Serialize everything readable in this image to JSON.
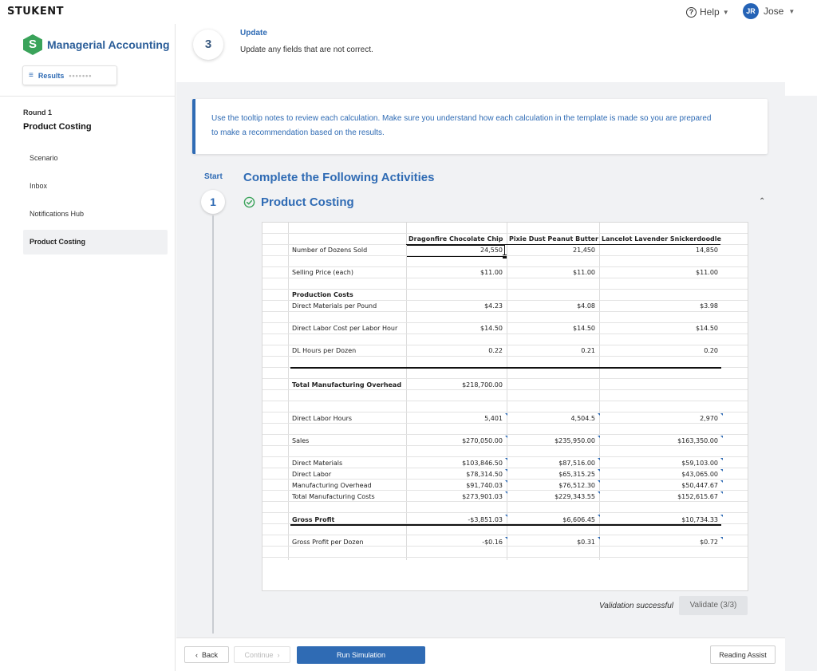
{
  "app": {
    "logo": "STUKENT",
    "help_label": "Help",
    "user": {
      "initials": "JR",
      "name": "Jose"
    },
    "accent_color": "#2f6bb4"
  },
  "sidebar": {
    "brand_letter": "S",
    "brand_title": "Managerial Accounting",
    "results_label": "Results",
    "round_label": "Round 1",
    "round_title": "Product Costing",
    "items": [
      {
        "label": "Scenario",
        "active": false
      },
      {
        "label": "Inbox",
        "active": false
      },
      {
        "label": "Notifications Hub",
        "active": false
      },
      {
        "label": "Product Costing",
        "active": true
      }
    ]
  },
  "update": {
    "step_number": "3",
    "title": "Update",
    "description": "Update any fields that are not correct."
  },
  "tip": {
    "line1": "Use the tooltip notes to review each calculation. Make sure you understand how each calculation in the template is made so you are prepared",
    "line2": "to make a recommendation based on the results."
  },
  "activities": {
    "start_label": "Start",
    "title": "Complete the Following Activities",
    "step_number": "1",
    "section_title": "Product Costing"
  },
  "sheet": {
    "columns": [
      "Dragonfire Chocolate Chip",
      "Pixie Dust Peanut Butter",
      "Lancelot Lavender Snickerdoodle"
    ],
    "rows": [
      {
        "label": "Number of Dozens Sold",
        "values": [
          "24,550",
          "21,450",
          "14,850"
        ]
      },
      {
        "label": "Selling Price (each)",
        "values": [
          "$11.00",
          "$11.00",
          "$11.00"
        ]
      },
      {
        "label": "Production Costs",
        "values": [
          "",
          "",
          ""
        ]
      },
      {
        "label": "Direct Materials per Pound",
        "values": [
          "$4.23",
          "$4.08",
          "$3.98"
        ]
      },
      {
        "label": "Direct Labor Cost per Labor Hour",
        "values": [
          "$14.50",
          "$14.50",
          "$14.50"
        ]
      },
      {
        "label": "DL Hours per Dozen",
        "values": [
          "0.22",
          "0.21",
          "0.20"
        ]
      },
      {
        "label": "Total Manufacturing Overhead",
        "values": [
          "$218,700.00",
          "",
          ""
        ]
      },
      {
        "label": "Direct Labor Hours",
        "values": [
          "5,401",
          "4,504.5",
          "2,970"
        ]
      },
      {
        "label": "Sales",
        "values": [
          "$270,050.00",
          "$235,950.00",
          "$163,350.00"
        ]
      },
      {
        "label": "Direct Materials",
        "values": [
          "$103,846.50",
          "$87,516.00",
          "$59,103.00"
        ]
      },
      {
        "label": "Direct Labor",
        "values": [
          "$78,314.50",
          "$65,315.25",
          "$43,065.00"
        ]
      },
      {
        "label": "Manufacturing Overhead",
        "values": [
          "$91,740.03",
          "$76,512.30",
          "$50,447.67"
        ]
      },
      {
        "label": "Total Manufacturing Costs",
        "values": [
          "$273,901.03",
          "$229,343.55",
          "$152,615.67"
        ]
      },
      {
        "label": "Gross Profit",
        "values": [
          "-$3,851.03",
          "$6,606.45",
          "$10,734.33"
        ]
      },
      {
        "label": "Gross Profit per Dozen",
        "values": [
          "-$0.16",
          "$0.31",
          "$0.72"
        ]
      }
    ]
  },
  "validation": {
    "status": "Validation successful",
    "button_label": "Validate (3/3)"
  },
  "footer": {
    "back_label": "Back",
    "continue_label": "Continue",
    "run_label": "Run Simulation",
    "reading_label": "Reading Assist"
  }
}
